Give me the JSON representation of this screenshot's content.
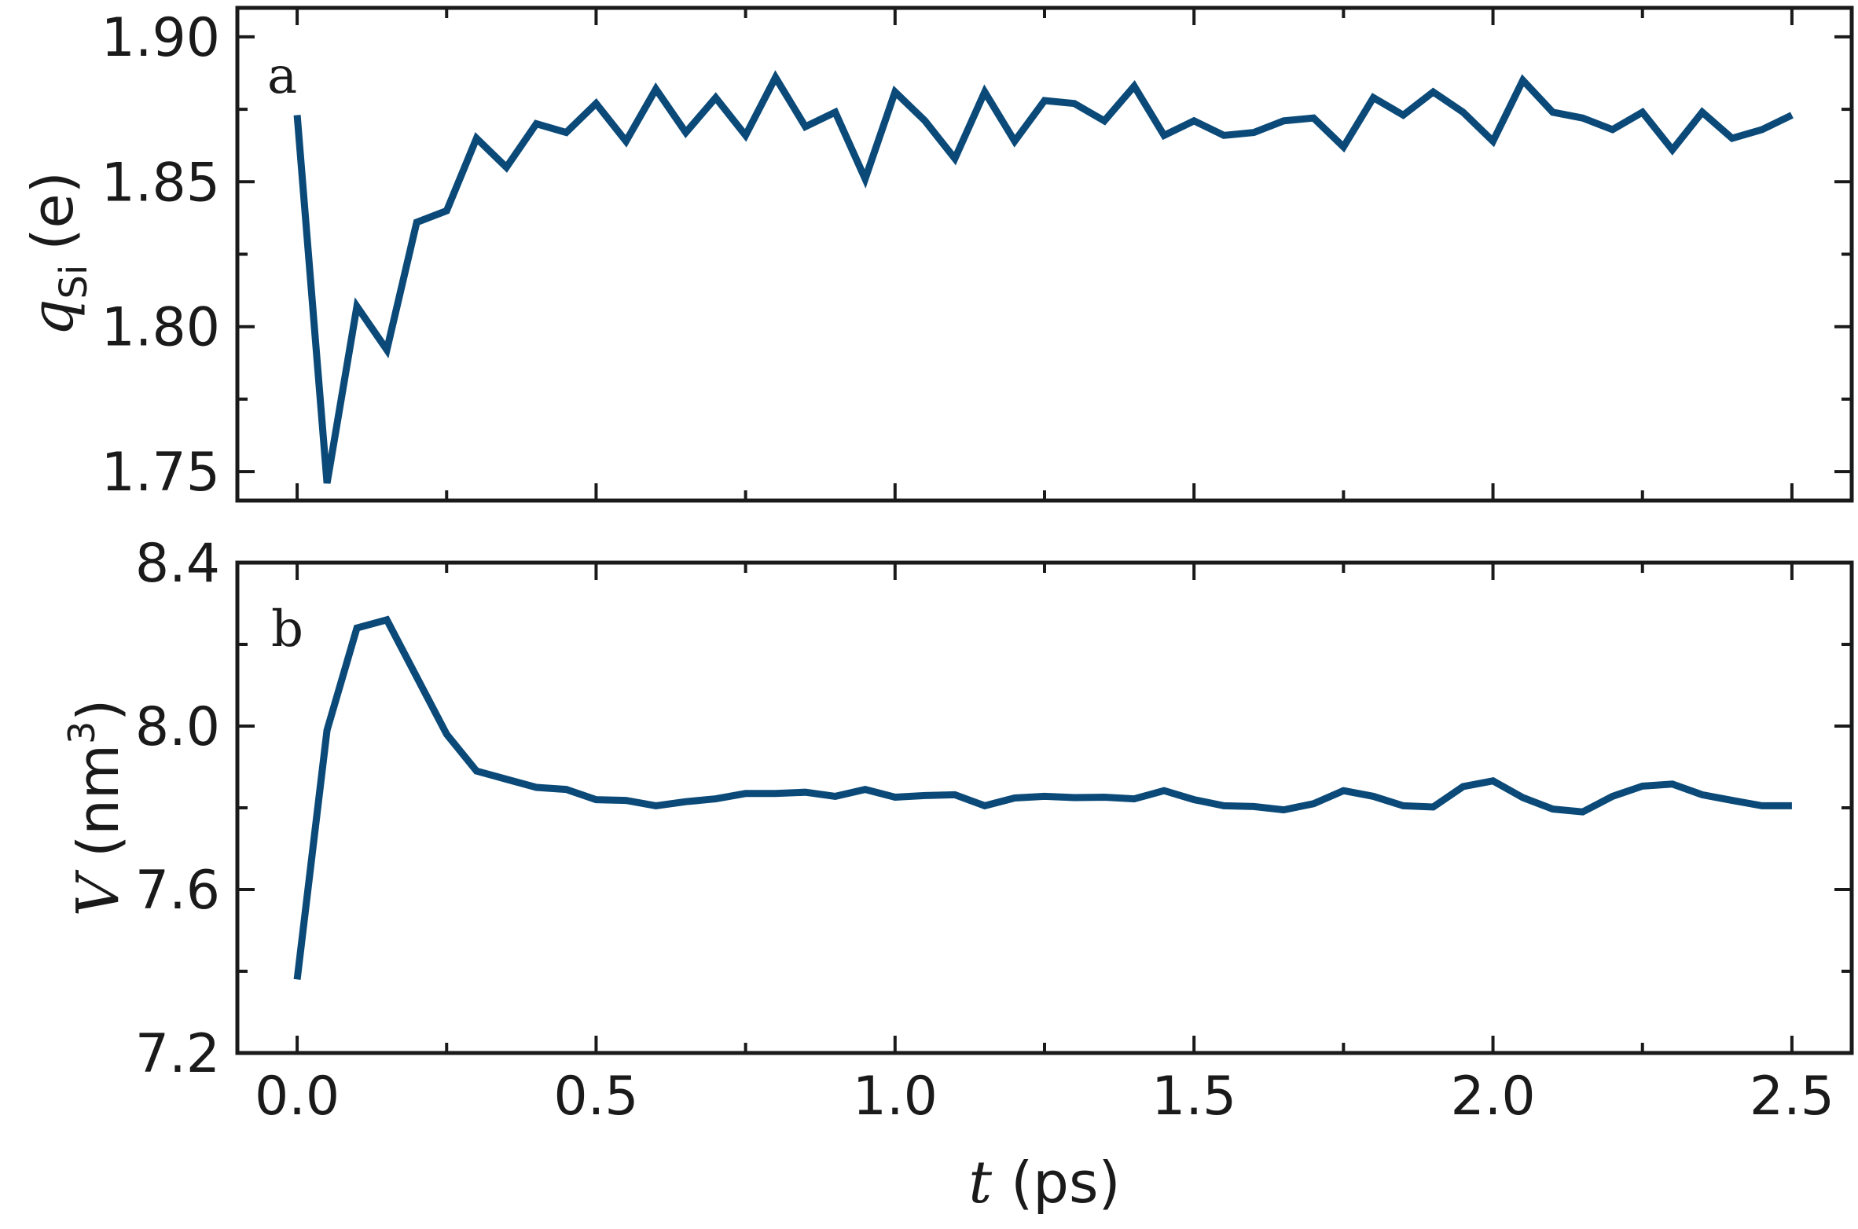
{
  "chart_data": [
    {
      "type": "line",
      "panel_label": "a",
      "ylabel_symbol": "q",
      "ylabel_subscript": "Si",
      "ylabel_unit": "(e)",
      "ylim": [
        1.74,
        1.91
      ],
      "yticks": [
        "1.75",
        "1.80",
        "1.85",
        "1.90"
      ],
      "ytick_values": [
        1.75,
        1.8,
        1.85,
        1.9
      ],
      "ytick_minor_values": [
        1.775,
        1.825,
        1.875
      ],
      "xlim": [
        -0.1,
        2.6
      ],
      "xtick_values": [
        0.0,
        0.25,
        0.5,
        0.75,
        1.0,
        1.25,
        1.5,
        1.75,
        2.0,
        2.25,
        2.5
      ],
      "color": "#0b4a78",
      "series": [
        {
          "x": [
            0.0,
            0.05,
            0.1,
            0.15,
            0.2,
            0.25,
            0.3,
            0.35,
            0.4,
            0.45,
            0.5,
            0.55,
            0.6,
            0.65,
            0.7,
            0.75,
            0.8,
            0.85,
            0.9,
            0.95,
            1.0,
            1.05,
            1.1,
            1.15,
            1.2,
            1.25,
            1.3,
            1.35,
            1.4,
            1.45,
            1.5,
            1.55,
            1.6,
            1.65,
            1.7,
            1.75,
            1.8,
            1.85,
            1.9,
            1.95,
            2.0,
            2.05,
            2.1,
            2.15,
            2.2,
            2.25,
            2.3,
            2.35,
            2.4,
            2.45,
            2.5
          ],
          "y": [
            1.873,
            1.746,
            1.807,
            1.792,
            1.836,
            1.84,
            1.865,
            1.855,
            1.87,
            1.867,
            1.877,
            1.864,
            1.882,
            1.867,
            1.879,
            1.866,
            1.886,
            1.869,
            1.874,
            1.851,
            1.881,
            1.871,
            1.858,
            1.881,
            1.864,
            1.878,
            1.877,
            1.871,
            1.883,
            1.866,
            1.871,
            1.866,
            1.867,
            1.871,
            1.872,
            1.862,
            1.879,
            1.873,
            1.881,
            1.874,
            1.864,
            1.885,
            1.874,
            1.872,
            1.868,
            1.874,
            1.861,
            1.874,
            1.865,
            1.868,
            1.873
          ]
        }
      ]
    },
    {
      "type": "line",
      "panel_label": "b",
      "ylabel_symbol": "V",
      "ylabel_unit": "(nm",
      "ylabel_sup": "3",
      "ylabel_close": ")",
      "xlabel_symbol": "t",
      "xlabel_unit": "(ps)",
      "ylim": [
        7.2,
        8.4
      ],
      "yticks": [
        "7.2",
        "7.6",
        "8.0",
        "8.4"
      ],
      "ytick_values": [
        7.2,
        7.6,
        8.0,
        8.4
      ],
      "ytick_minor_values": [
        7.4,
        7.8,
        8.2
      ],
      "xlim": [
        -0.1,
        2.6
      ],
      "xticks": [
        "0.0",
        "0.5",
        "1.0",
        "1.5",
        "2.0",
        "2.5"
      ],
      "xtick_values": [
        0.0,
        0.5,
        1.0,
        1.5,
        2.0,
        2.5
      ],
      "xtick_minor_values": [
        0.25,
        0.75,
        1.25,
        1.75,
        2.25
      ],
      "color": "#0b4a78",
      "series": [
        {
          "x": [
            0.0,
            0.05,
            0.1,
            0.15,
            0.2,
            0.25,
            0.3,
            0.35,
            0.4,
            0.45,
            0.5,
            0.55,
            0.6,
            0.65,
            0.7,
            0.75,
            0.8,
            0.85,
            0.9,
            0.95,
            1.0,
            1.05,
            1.1,
            1.15,
            1.2,
            1.25,
            1.3,
            1.35,
            1.4,
            1.45,
            1.5,
            1.55,
            1.6,
            1.65,
            1.7,
            1.75,
            1.8,
            1.85,
            1.9,
            1.95,
            2.0,
            2.05,
            2.1,
            2.15,
            2.2,
            2.25,
            2.3,
            2.35,
            2.4,
            2.45,
            2.5
          ],
          "y": [
            7.38,
            7.99,
            8.24,
            8.26,
            8.12,
            7.98,
            7.89,
            7.87,
            7.85,
            7.845,
            7.82,
            7.818,
            7.805,
            7.815,
            7.822,
            7.835,
            7.835,
            7.838,
            7.828,
            7.845,
            7.826,
            7.83,
            7.832,
            7.805,
            7.824,
            7.828,
            7.825,
            7.826,
            7.822,
            7.842,
            7.82,
            7.805,
            7.803,
            7.795,
            7.81,
            7.842,
            7.828,
            7.805,
            7.802,
            7.852,
            7.866,
            7.825,
            7.797,
            7.79,
            7.828,
            7.853,
            7.858,
            7.832,
            7.818,
            7.805,
            7.805
          ]
        }
      ]
    }
  ]
}
